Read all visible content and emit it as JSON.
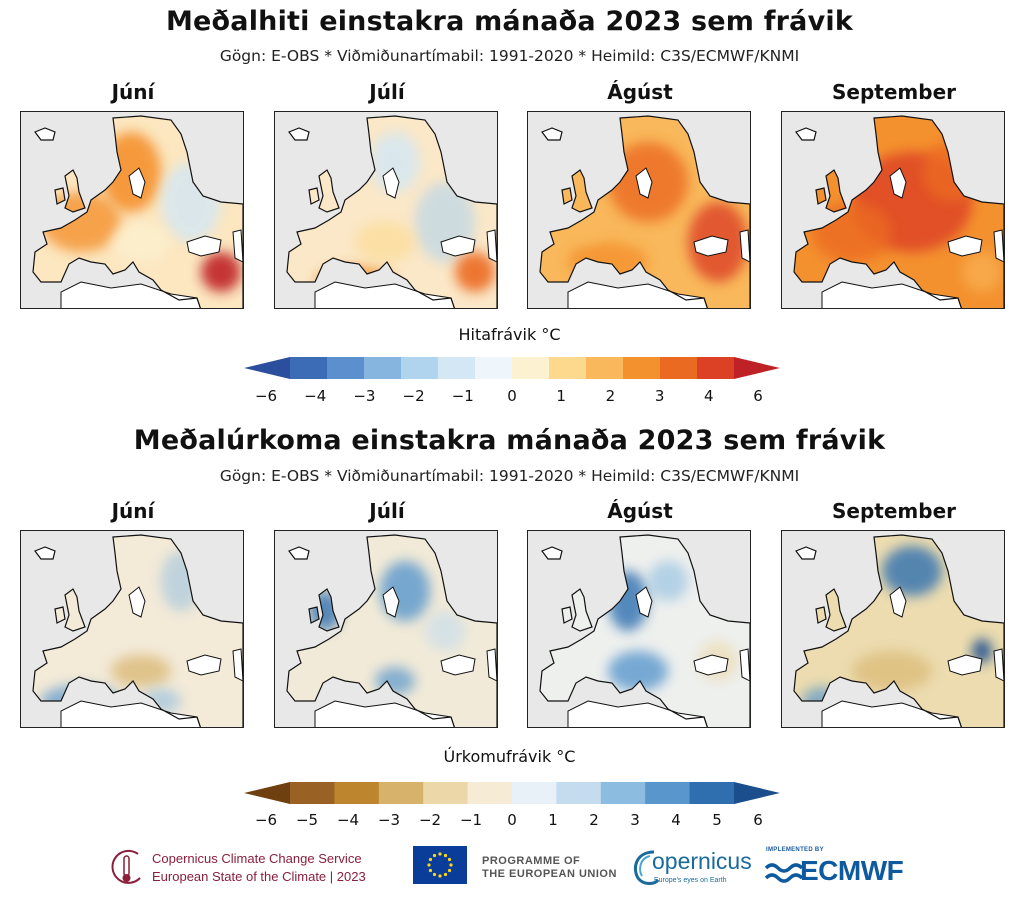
{
  "temperature": {
    "title": "Meðalhiti einstakra mánaða 2023 sem frávik",
    "subtitle": "Gögn: E-OBS * Viðmiðunartímabil: 1991-2020 * Heimild: C3S/ECMWF/KNMI",
    "months": [
      "Júní",
      "Júlí",
      "Ágúst",
      "September"
    ],
    "colorbar_label": "Hitafrávik °C",
    "ticks": [
      "−6",
      "−4",
      "−3",
      "−2",
      "−1",
      "0",
      "1",
      "2",
      "3",
      "4",
      "6"
    ],
    "colors": [
      "#2b4f9c",
      "#3c6cb5",
      "#5b8fcd",
      "#86b6e0",
      "#b0d3ee",
      "#d3e7f5",
      "#eef6fb",
      "#fcf1d0",
      "#fcd98c",
      "#f9b85b",
      "#f4912f",
      "#eb6a22",
      "#dc4126",
      "#bf2226"
    ]
  },
  "precipitation": {
    "title": "Meðalúrkoma einstakra mánaða 2023 sem frávik",
    "subtitle": "Gögn: E-OBS * Viðmiðunartímabil: 1991-2020 * Heimild: C3S/ECMWF/KNMI",
    "months": [
      "Júní",
      "Júlí",
      "Ágúst",
      "September"
    ],
    "colorbar_label": "Úrkomufrávik °C",
    "ticks": [
      "−6",
      "−5",
      "−4",
      "−3",
      "−2",
      "−1",
      "0",
      "1",
      "2",
      "3",
      "4",
      "5",
      "6"
    ],
    "colors": [
      "#6e4010",
      "#9a6124",
      "#bc852e",
      "#d7b26b",
      "#ecd7a8",
      "#f6ecd6",
      "#e9f1f8",
      "#c4dcee",
      "#8cbce0",
      "#5996cc",
      "#2f6fb0",
      "#1a4e8c"
    ]
  },
  "logos": {
    "c3s_line1": "Copernicus Climate Change Service",
    "c3s_line2": "European State of the Climate | 2023",
    "eu_line1": "PROGRAMME OF",
    "eu_line2": "THE EUROPEAN UNION",
    "copernicus": "opernicus",
    "copernicus_tagline": "Europe's eyes on Earth",
    "ecmwf_small": "IMPLEMENTED BY",
    "ecmwf": "ECMWF"
  }
}
